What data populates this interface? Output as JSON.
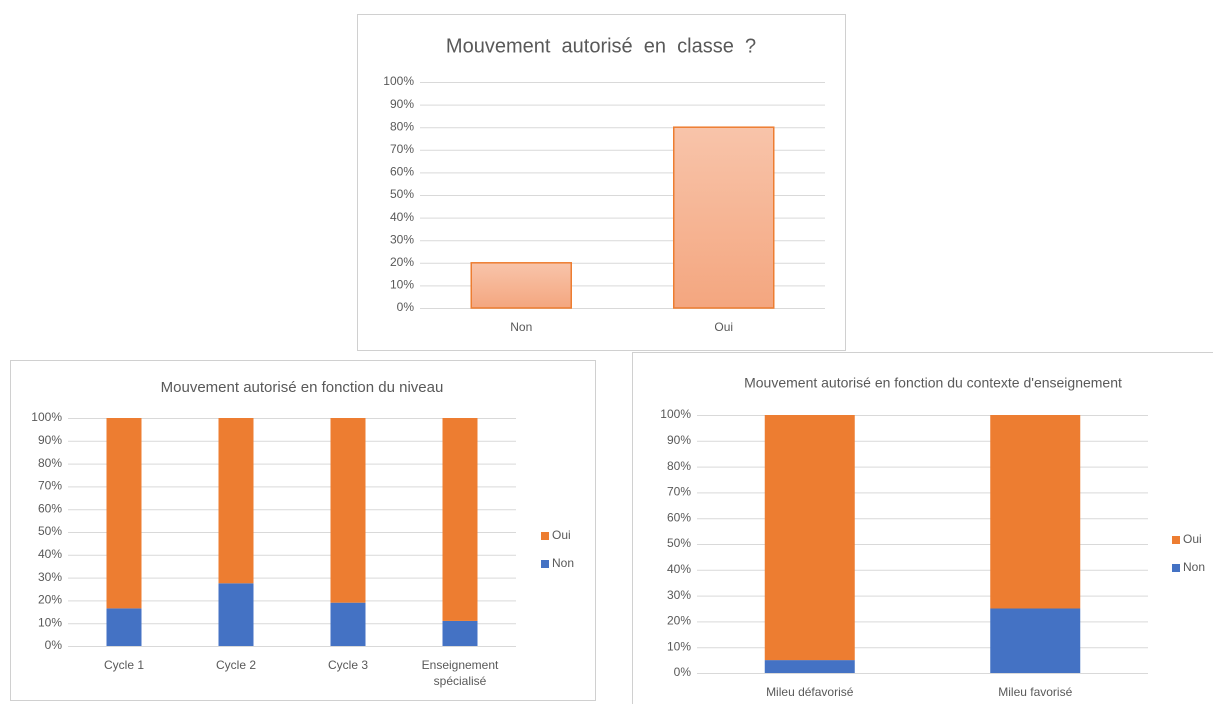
{
  "chart_data": [
    {
      "type": "bar",
      "title": "Mouvement  autorisé  en  classe  ?",
      "categories": [
        "Non",
        "Oui"
      ],
      "values": [
        20,
        80
      ],
      "color": "#f5b090",
      "edgecolor": "#ed7d31",
      "ylim": [
        0,
        100
      ],
      "yticks": [
        {
          "value": 0,
          "label": "0%"
        },
        {
          "value": 10,
          "label": "10%"
        },
        {
          "value": 20,
          "label": "20%"
        },
        {
          "value": 30,
          "label": "30%"
        },
        {
          "value": 40,
          "label": "40%"
        },
        {
          "value": 50,
          "label": "50%"
        },
        {
          "value": 60,
          "label": "60%"
        },
        {
          "value": 70,
          "label": "70%"
        },
        {
          "value": 80,
          "label": "80%"
        },
        {
          "value": 90,
          "label": "90%"
        },
        {
          "value": 100,
          "label": "100%"
        }
      ],
      "grid": true
    },
    {
      "type": "stacked_bar",
      "title": "Mouvement autorisé en fonction du niveau",
      "categories": [
        "Cycle 1",
        "Cycle 2",
        "Cycle 3",
        "Enseignement spécialisé"
      ],
      "series": [
        {
          "name": "Non",
          "color": "#4472c4",
          "values": [
            16.5,
            27.5,
            19,
            11
          ]
        },
        {
          "name": "Oui",
          "color": "#ed7d31",
          "values": [
            83.5,
            72.5,
            81,
            89
          ]
        }
      ],
      "ylim": [
        0,
        100
      ],
      "yticks": [
        {
          "value": 0,
          "label": "0%"
        },
        {
          "value": 10,
          "label": "10%"
        },
        {
          "value": 20,
          "label": "20%"
        },
        {
          "value": 30,
          "label": "30%"
        },
        {
          "value": 40,
          "label": "40%"
        },
        {
          "value": 50,
          "label": "50%"
        },
        {
          "value": 60,
          "label": "60%"
        },
        {
          "value": 70,
          "label": "70%"
        },
        {
          "value": 80,
          "label": "80%"
        },
        {
          "value": 90,
          "label": "90%"
        },
        {
          "value": 100,
          "label": "100%"
        }
      ],
      "grid": true,
      "legend": "right"
    },
    {
      "type": "stacked_bar",
      "title": "Mouvement autorisé en fonction du contexte d'enseignement",
      "categories": [
        "Mileu défavorisé",
        "Mileu favorisé"
      ],
      "series": [
        {
          "name": "Non",
          "color": "#4472c4",
          "values": [
            5,
            25
          ]
        },
        {
          "name": "Oui",
          "color": "#ed7d31",
          "values": [
            95,
            75
          ]
        }
      ],
      "ylim": [
        0,
        100
      ],
      "yticks": [
        {
          "value": 0,
          "label": "0%"
        },
        {
          "value": 10,
          "label": "10%"
        },
        {
          "value": 20,
          "label": "20%"
        },
        {
          "value": 30,
          "label": "30%"
        },
        {
          "value": 40,
          "label": "40%"
        },
        {
          "value": 50,
          "label": "50%"
        },
        {
          "value": 60,
          "label": "60%"
        },
        {
          "value": 70,
          "label": "70%"
        },
        {
          "value": 80,
          "label": "80%"
        },
        {
          "value": 90,
          "label": "90%"
        },
        {
          "value": 100,
          "label": "100%"
        }
      ],
      "grid": true,
      "legend": "right"
    }
  ]
}
